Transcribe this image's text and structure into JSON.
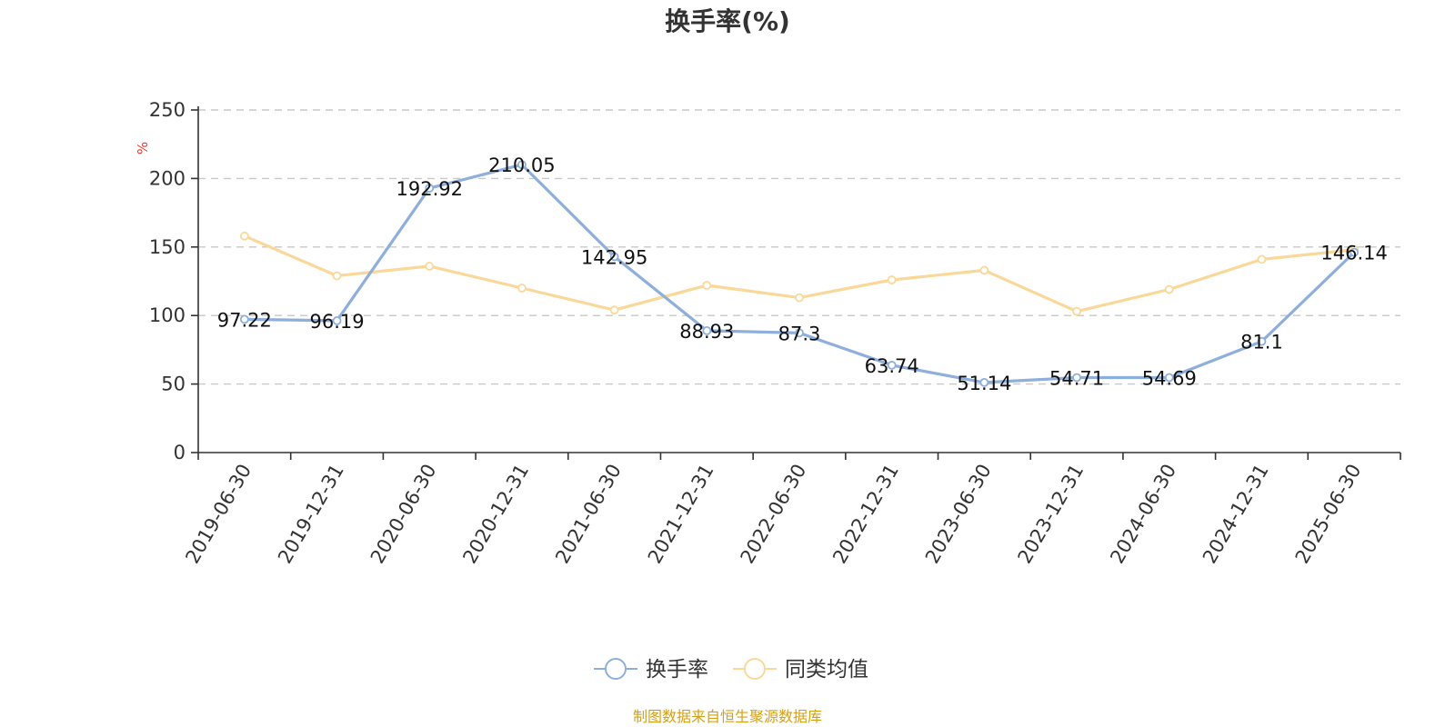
{
  "chart_data": {
    "type": "line",
    "title": "换手率(%)",
    "ylabel": "%",
    "xlabel": "",
    "ylim": [
      0,
      250
    ],
    "yticks": [
      0,
      50,
      100,
      150,
      200,
      250
    ],
    "grid": true,
    "legend_position": "bottom",
    "categories": [
      "2019-06-30",
      "2019-12-31",
      "2020-06-30",
      "2020-12-31",
      "2021-06-30",
      "2021-12-31",
      "2022-06-30",
      "2022-12-31",
      "2023-06-30",
      "2023-12-31",
      "2024-06-30",
      "2024-12-31",
      "2025-06-30"
    ],
    "series": [
      {
        "name": "换手率",
        "color": "#8eaedb",
        "values": [
          97.22,
          96.19,
          192.92,
          210.05,
          142.95,
          88.93,
          87.3,
          63.74,
          51.14,
          54.71,
          54.69,
          81.1,
          146.14
        ],
        "labels": [
          "97.22",
          "96.19",
          "192.92",
          "210.05",
          "142.95",
          "88.93",
          "87.3",
          "63.74",
          "51.14",
          "54.71",
          "54.69",
          "81.1",
          "146.14"
        ]
      },
      {
        "name": "同类均值",
        "color": "#f9d899",
        "values": [
          158,
          129,
          136,
          120,
          104,
          122,
          113,
          126,
          133,
          103,
          119,
          141,
          148
        ]
      }
    ],
    "source": "制图数据来自恒生聚源数据库"
  }
}
